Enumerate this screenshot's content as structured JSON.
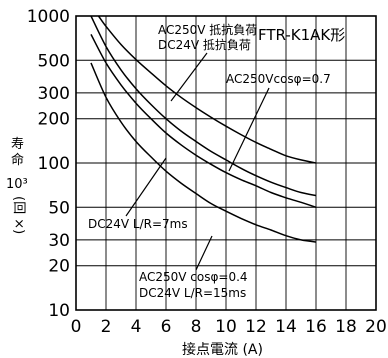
{
  "chart_data": {
    "type": "line",
    "title": "FTR-K1AK形",
    "xlabel": "接点電流 (A)",
    "ylabel": {
      "line1": "寿",
      "line2": "命",
      "line3": "10³",
      "line4": "(回 ×)"
    },
    "y_scale": "log",
    "xlim": [
      0,
      20
    ],
    "ylim": [
      10,
      1000
    ],
    "x_ticks": [
      "0",
      "2",
      "4",
      "6",
      "8",
      "10",
      "12",
      "14",
      "16",
      "18",
      "20"
    ],
    "y_ticks": [
      "1000",
      "500",
      "300",
      "200",
      "100",
      "50",
      "30",
      "20",
      "10"
    ],
    "grid": true,
    "series": [
      {
        "labels": [
          "AC250V 抵抗負荷",
          "DC24V 抵抗負荷"
        ],
        "x": [
          1.5,
          2,
          3,
          4,
          5,
          6,
          7,
          8,
          9,
          10,
          11,
          12,
          13,
          14,
          15,
          16
        ],
        "y": [
          1000,
          850,
          640,
          505,
          410,
          335,
          280,
          238,
          205,
          178,
          156,
          138,
          124,
          112,
          105,
          100
        ]
      },
      {
        "labels": [
          "AC250Vcosφ=0.7"
        ],
        "x": [
          1,
          2,
          3,
          4,
          5,
          6,
          7,
          8,
          9,
          10,
          11,
          12,
          13,
          14,
          15,
          16
        ],
        "y": [
          1000,
          620,
          430,
          320,
          250,
          200,
          165,
          140,
          120,
          105,
          92,
          82,
          74,
          68,
          63,
          60
        ]
      },
      {
        "labels": [
          "DC24V L/R=7ms"
        ],
        "x": [
          1,
          2,
          3,
          4,
          5,
          6,
          7,
          8,
          9,
          10,
          11,
          12,
          13,
          14,
          15,
          16
        ],
        "y": [
          750,
          480,
          340,
          255,
          200,
          160,
          133,
          113,
          98,
          86,
          77,
          70,
          63,
          58,
          54,
          50
        ]
      },
      {
        "labels": [
          "AC250V cosφ=0.4",
          "DC24V L/R=15ms"
        ],
        "x": [
          1,
          2,
          3,
          4,
          5,
          6,
          7,
          8,
          9,
          10,
          11,
          12,
          13,
          14,
          15,
          16
        ],
        "y": [
          480,
          280,
          190,
          140,
          110,
          88,
          73,
          62,
          53,
          47,
          42,
          38,
          35,
          32,
          30,
          29
        ]
      }
    ]
  }
}
